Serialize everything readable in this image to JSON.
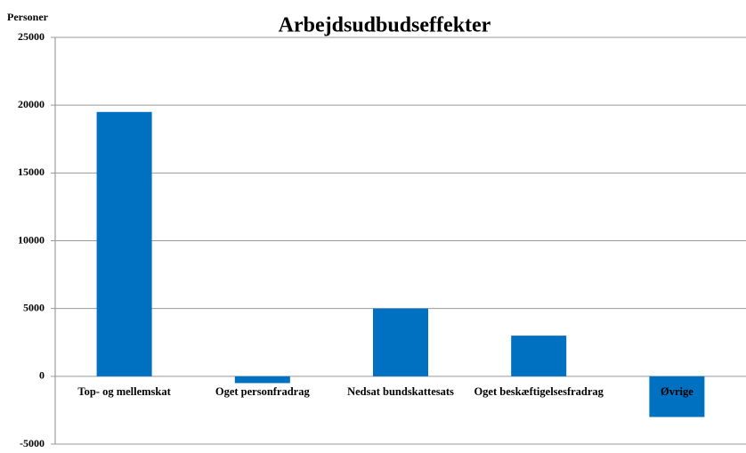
{
  "chart_data": {
    "type": "bar",
    "title": "Arbejdsudbudseffekter",
    "y_label": "Personer",
    "categories": [
      "Top- og mellemskat",
      "Oget personfradrag",
      "Nedsat bundskattesats",
      "Oget beskæftigelsesfradrag",
      "Øvrige"
    ],
    "values": [
      19500,
      -500,
      5000,
      3000,
      -3000
    ],
    "color": "#0070c0",
    "ylim": [
      -5000,
      25000
    ],
    "yticks": [
      -5000,
      0,
      5000,
      10000,
      15000,
      20000,
      25000
    ],
    "grid": true
  }
}
